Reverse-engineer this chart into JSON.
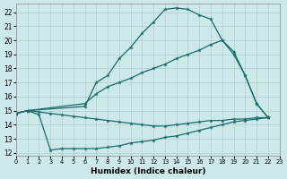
{
  "xlabel": "Humidex (Indice chaleur)",
  "xlim": [
    0,
    23
  ],
  "ylim": [
    11.8,
    22.6
  ],
  "xticks": [
    0,
    1,
    2,
    3,
    4,
    5,
    6,
    7,
    8,
    9,
    10,
    11,
    12,
    13,
    14,
    15,
    16,
    17,
    18,
    19,
    20,
    21,
    22,
    23
  ],
  "yticks": [
    12,
    13,
    14,
    15,
    16,
    17,
    18,
    19,
    20,
    21,
    22
  ],
  "background_color": "#cce8e8",
  "line_color": "#1a6b6b",
  "grid_color": "#aed0d0",
  "curve_top_x": [
    0,
    1,
    6,
    7,
    8,
    9,
    10,
    11,
    12,
    13,
    14,
    15,
    16,
    17,
    18,
    19,
    20,
    21,
    22
  ],
  "curve_top_y": [
    14.8,
    15.0,
    15.3,
    17.0,
    17.5,
    18.7,
    19.5,
    20.5,
    21.3,
    22.2,
    22.3,
    22.2,
    21.8,
    21.5,
    20.0,
    19.2,
    17.5,
    15.5,
    14.5
  ],
  "curve_mid_x": [
    0,
    1,
    6,
    7,
    8,
    9,
    10,
    11,
    12,
    13,
    14,
    15,
    16,
    17,
    18,
    19,
    20,
    21,
    22
  ],
  "curve_mid_y": [
    14.8,
    15.0,
    15.5,
    16.2,
    16.7,
    17.0,
    17.3,
    17.7,
    18.0,
    18.3,
    18.7,
    19.0,
    19.3,
    19.7,
    20.0,
    19.0,
    17.5,
    15.5,
    14.5
  ],
  "curve_flat_x": [
    0,
    1,
    2,
    3,
    4,
    5,
    6,
    7,
    8,
    9,
    10,
    11,
    12,
    13,
    14,
    15,
    16,
    17,
    18,
    19,
    20,
    21,
    22
  ],
  "curve_flat_y": [
    14.8,
    15.0,
    14.9,
    14.8,
    14.7,
    14.6,
    14.5,
    14.4,
    14.3,
    14.2,
    14.1,
    14.0,
    13.9,
    13.9,
    14.0,
    14.1,
    14.2,
    14.3,
    14.3,
    14.4,
    14.4,
    14.5,
    14.5
  ],
  "curve_dip_x": [
    0,
    1,
    2,
    3,
    4,
    5,
    6,
    7,
    8,
    9,
    10,
    11,
    12,
    13,
    14,
    15,
    16,
    17,
    18,
    19,
    20,
    21,
    22
  ],
  "curve_dip_y": [
    14.8,
    15.0,
    14.7,
    12.2,
    12.3,
    12.3,
    12.3,
    12.3,
    12.4,
    12.5,
    12.7,
    12.8,
    12.9,
    13.1,
    13.2,
    13.4,
    13.6,
    13.8,
    14.0,
    14.2,
    14.3,
    14.4,
    14.5
  ]
}
